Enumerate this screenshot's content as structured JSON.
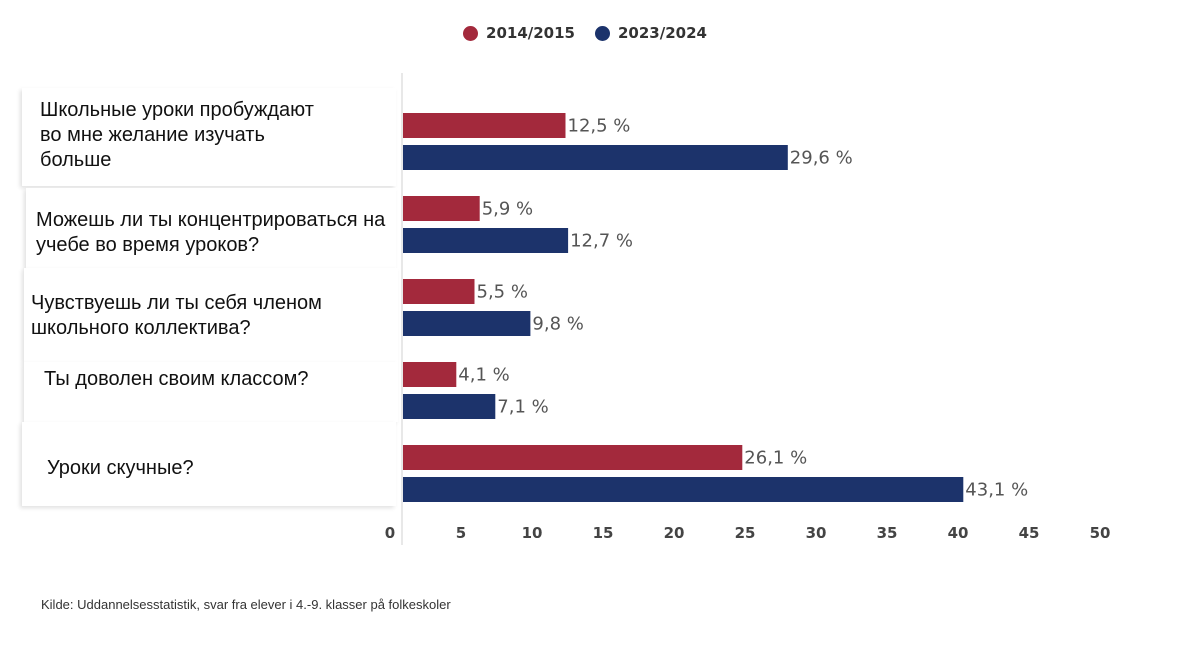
{
  "colors": {
    "series_2014": "#A3293C",
    "series_2023": "#1C336B"
  },
  "chart_data": {
    "type": "bar",
    "orientation": "horizontal",
    "categories": [
      "Школьные уроки пробуждают во мне желание изучать больше",
      "Можешь ли ты концентрироваться на учебе во время уроков?",
      "Чувствуешь ли ты себя членом школьного коллектива?",
      "Ты доволен своим классом?",
      "Уроки скучные?"
    ],
    "series": [
      {
        "name": "2014/2015",
        "values": [
          12.5,
          5.9,
          5.5,
          4.1,
          26.1
        ],
        "labels": [
          "12,5 %",
          "5,9 %",
          "5,5 %",
          "4,1 %",
          "26,1 %"
        ]
      },
      {
        "name": "2023/2024",
        "values": [
          29.6,
          12.7,
          9.8,
          7.1,
          43.1
        ],
        "labels": [
          "29,6 %",
          "12,7 %",
          "9,8 %",
          "7,1 %",
          "43,1 %"
        ]
      }
    ],
    "xlim": [
      0,
      50
    ],
    "xticks": [
      "0",
      "5",
      "10",
      "15",
      "20",
      "25",
      "30",
      "35",
      "40",
      "45",
      "50"
    ],
    "legend_position": "top-center",
    "grid": false
  },
  "source": "Kilde: Uddannelsesstatistik, svar fra elever i 4.-9. klasser på folkeskoler"
}
